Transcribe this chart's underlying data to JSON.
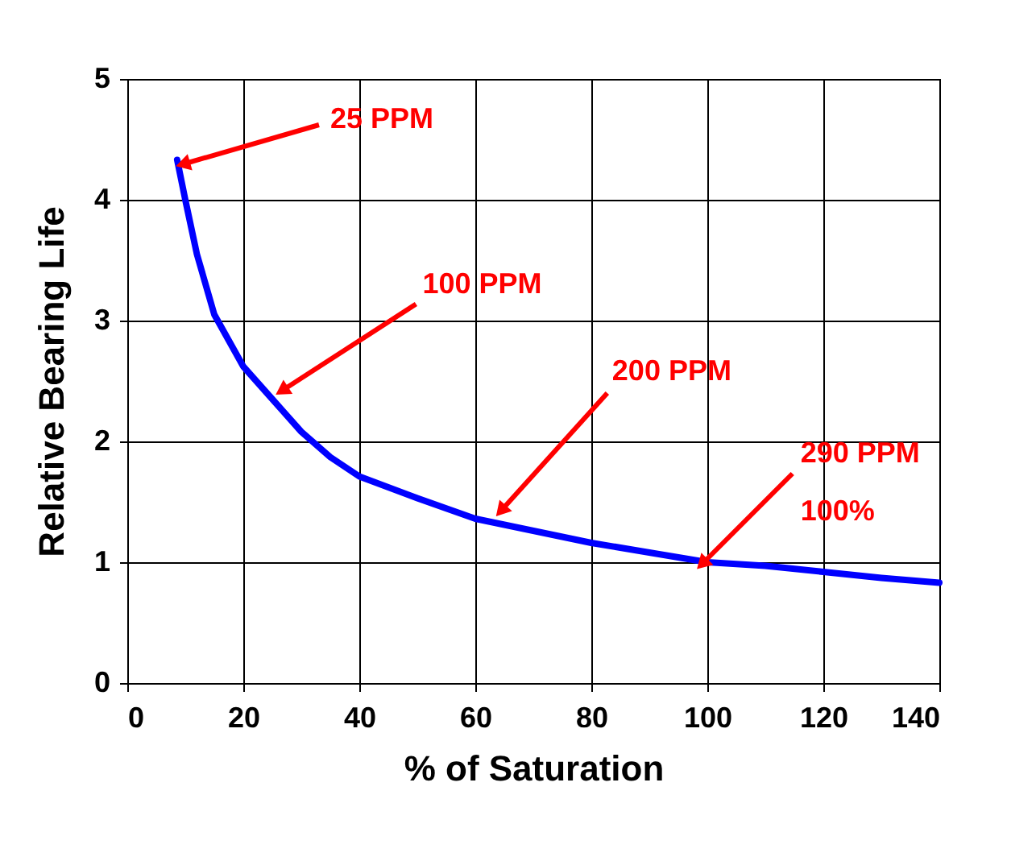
{
  "chart_data": {
    "type": "line",
    "xlabel": "% of Saturation",
    "ylabel": "Relative Bearing Life",
    "x": [
      8.6,
      10,
      12,
      15,
      20,
      25,
      30,
      35,
      40,
      50,
      60,
      70,
      80,
      90,
      100,
      110,
      120,
      130,
      140
    ],
    "series": [
      {
        "color": "#0000ff",
        "values": [
          4.33,
          4.0,
          3.55,
          3.05,
          2.62,
          2.35,
          2.08,
          1.87,
          1.71,
          1.53,
          1.36,
          1.26,
          1.16,
          1.08,
          1.0,
          0.97,
          0.92,
          0.87,
          0.83
        ]
      }
    ],
    "xlim": [
      0,
      140
    ],
    "xticks": [
      0,
      20,
      40,
      60,
      80,
      100,
      120,
      140
    ],
    "ylim": [
      0,
      5
    ],
    "yticks": [
      0,
      1,
      2,
      3,
      4,
      5
    ],
    "grid": true,
    "marker": "none",
    "line_style": "solid",
    "annotations": [
      {
        "text": "25 PPM",
        "x": 10,
        "y": 4.3
      },
      {
        "text": "100 PPM",
        "x": 27,
        "y": 2.43
      },
      {
        "text": "200 PPM",
        "x": 64.7,
        "y": 1.44
      },
      {
        "text": "290 PPM\n100%",
        "x": 99.4,
        "y": 1.0
      }
    ]
  }
}
